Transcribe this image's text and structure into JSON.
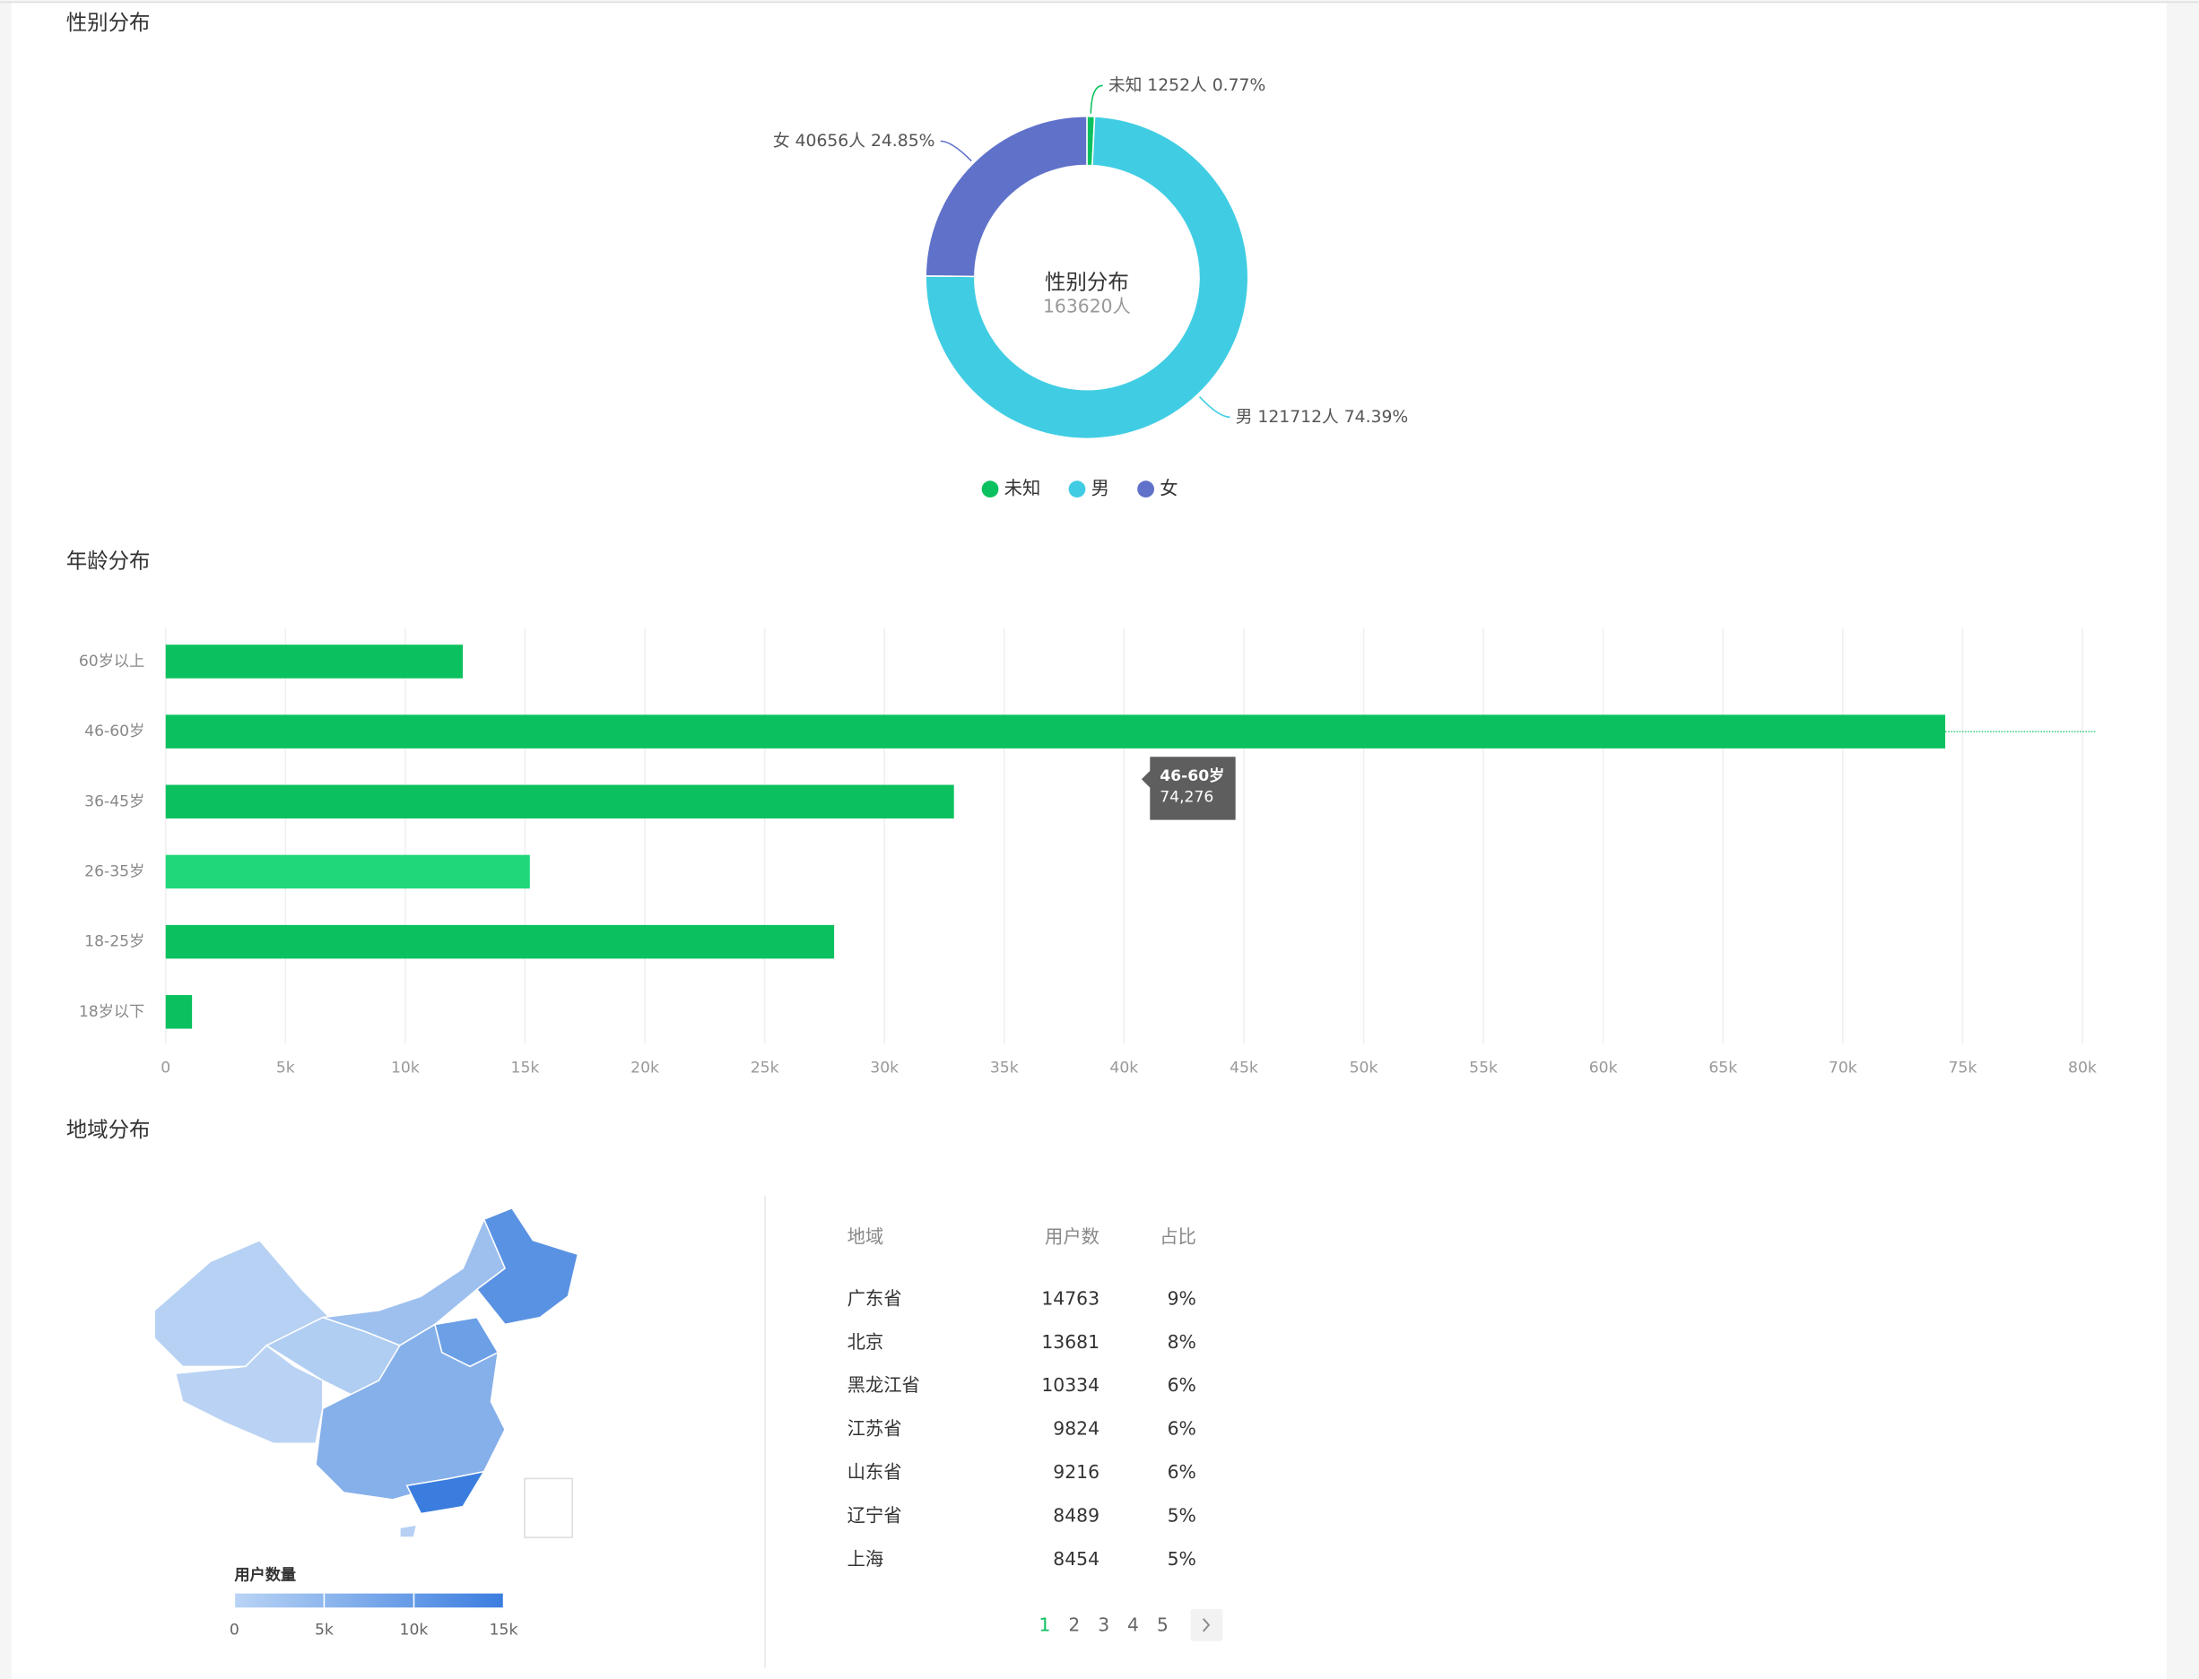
{
  "headings": [
    "性别分布",
    "年龄分布",
    "地域分布"
  ],
  "chart_data": [
    {
      "type": "pie",
      "center_title": "性别分布",
      "center_label": "163620人",
      "categories": [
        "未知",
        "男",
        "女"
      ],
      "values": [
        1252,
        121712,
        40656
      ],
      "value_labels": [
        "未知 1252人 0.77%",
        "男 121712人 74.39%",
        "女 40656人 24.85%"
      ],
      "colors": [
        "#0bc15f",
        "#40cde3",
        "#5f71c9"
      ],
      "legend": "bottom"
    },
    {
      "type": "hbar",
      "categories": [
        "60岁以上",
        "46-60岁",
        "36-45岁",
        "26-35岁",
        "18-25岁",
        "18岁以下"
      ],
      "values": [
        12400,
        74276,
        32900,
        15200,
        27900,
        1100
      ],
      "colors": [
        "#0bc15f",
        "#0bc15f",
        "#0bc15f",
        "#20d87a",
        "#0bc15f",
        "#0bc15f"
      ],
      "xlim": [
        0,
        80000
      ],
      "xticks": [
        0,
        {
          "value": 5000,
          "label": "5k"
        },
        {
          "value": 10000,
          "label": "10k"
        },
        {
          "value": 15000,
          "label": "15k"
        },
        {
          "value": 20000,
          "label": "20k"
        },
        {
          "value": 25000,
          "label": "25k"
        },
        {
          "value": 30000,
          "label": "30k"
        },
        {
          "value": 35000,
          "label": "35k"
        },
        {
          "value": 40000,
          "label": "40k"
        },
        {
          "value": 45000,
          "label": "45k"
        },
        {
          "value": 50000,
          "label": "50k"
        },
        {
          "value": 55000,
          "label": "55k"
        },
        {
          "value": 60000,
          "label": "60k"
        },
        {
          "value": 65000,
          "label": "65k"
        },
        {
          "value": 70000,
          "label": "70k"
        },
        {
          "value": 75000,
          "label": "75k"
        },
        {
          "value": 80000,
          "label": "80k"
        }
      ],
      "grid": true,
      "tooltip": {
        "label": "74,276"
      }
    }
  ],
  "map_legend": {
    "title": "用户数量",
    "range": [
      0,
      15000
    ],
    "ticks": [
      0,
      {
        "value": 5000,
        "label": "5k"
      },
      {
        "value": 10000,
        "label": "10k"
      },
      {
        "value": 15000,
        "label": "15k"
      }
    ],
    "colors": [
      "#b9d4f5",
      "#3b7ddf"
    ]
  },
  "table": {
    "header": [
      "地域",
      "用户数",
      "占比"
    ],
    "rows": [
      [
        "广东省",
        14763,
        "9%"
      ],
      [
        "北京",
        13681,
        "8%"
      ],
      [
        "黑龙江省",
        10334,
        "6%"
      ],
      [
        "江苏省",
        9824,
        "6%"
      ],
      [
        "山东省",
        9216,
        "6%"
      ],
      [
        "辽宁省",
        8489,
        "5%"
      ],
      [
        "上海",
        8454,
        "5%"
      ]
    ]
  },
  "pagination": {
    "pages": [
      1,
      2,
      3,
      4,
      5
    ],
    "current": 1
  }
}
